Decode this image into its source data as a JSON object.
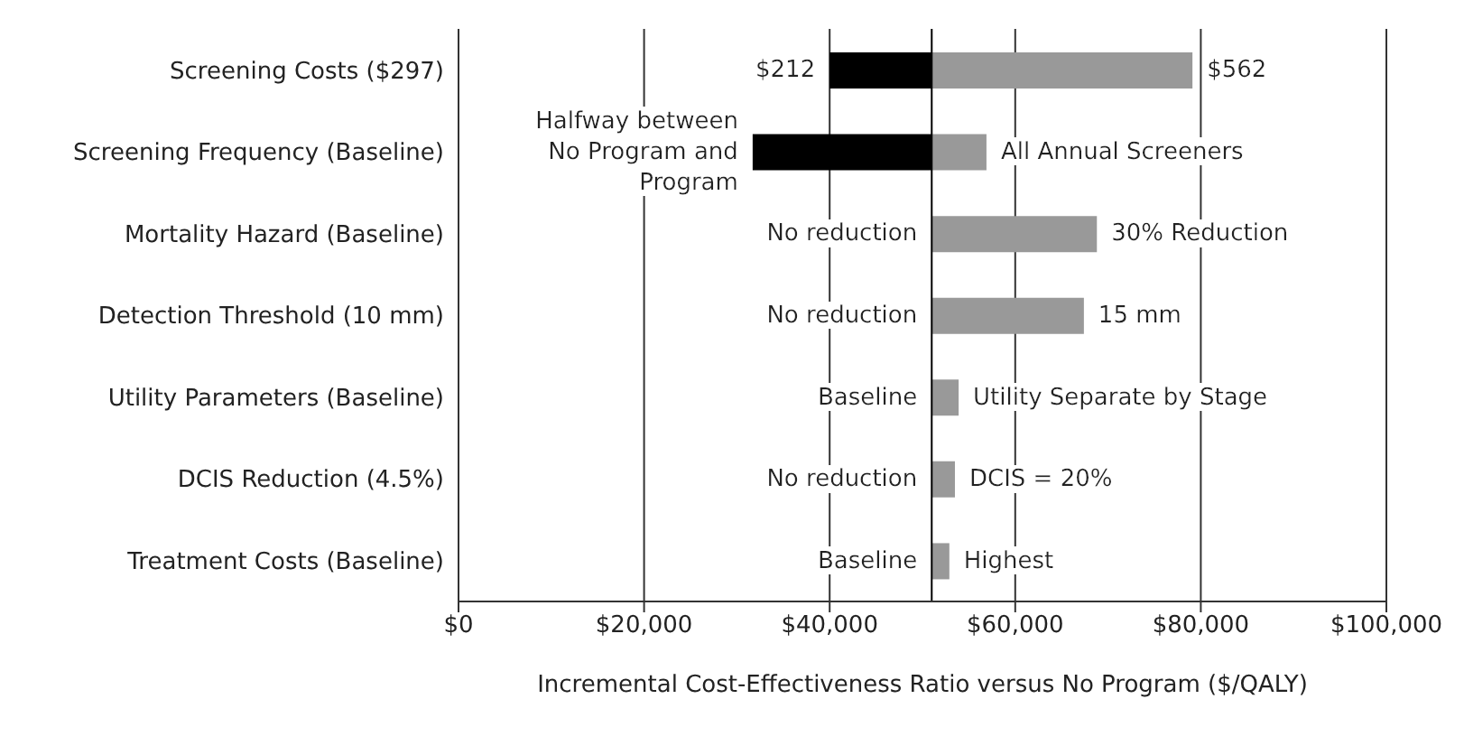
{
  "chart_data": {
    "type": "bar",
    "orientation": "horizontal",
    "xlabel": "Incremental Cost-Effectiveness Ratio versus No Program ($/QALY)",
    "categories": [
      "Screening Costs ($297)",
      "Screening Frequency (Baseline)",
      "Mortality Hazard (Baseline)",
      "Detection Threshold (10 mm)",
      "Utility Parameters (Baseline)",
      "DCIS Reduction (4.5%)",
      "Treatment Costs (Baseline)"
    ],
    "series": [
      {
        "color": "#000000",
        "base": [
          40000,
          31700,
          null,
          null,
          null,
          null,
          null
        ],
        "values": [
          11000,
          19300,
          null,
          null,
          null,
          null,
          null
        ]
      },
      {
        "color": "#999999",
        "base": [
          51000,
          51000,
          51000,
          51000,
          51000,
          51000,
          51000
        ],
        "values": [
          28100,
          5900,
          17800,
          16400,
          2900,
          2500,
          1900
        ]
      }
    ],
    "annotations": [
      {
        "text": "$212",
        "x": 40000,
        "y": "Screening Costs ($297)"
      },
      {
        "text": "Halfway between\nNo Program and\nProgram",
        "x": 31700,
        "y": "Screening Frequency (Baseline)"
      },
      {
        "text": "No reduction",
        "x": 51000,
        "y": "Mortality Hazard (Baseline)"
      },
      {
        "text": "No reduction",
        "x": 51000,
        "y": "Detection Threshold (10 mm)"
      },
      {
        "text": "Baseline",
        "x": 51000,
        "y": "Utility Parameters (Baseline)"
      },
      {
        "text": "No reduction",
        "x": 51000,
        "y": "DCIS Reduction (4.5%)"
      },
      {
        "text": "Baseline",
        "x": 51000,
        "y": "Treatment Costs (Baseline)"
      },
      {
        "text": "$562",
        "x": 79100,
        "y": "Screening Costs ($297)"
      },
      {
        "text": "All Annual Screeners",
        "x": 56900,
        "y": "Screening Frequency (Baseline)"
      },
      {
        "text": "30% Reduction",
        "x": 68800,
        "y": "Mortality Hazard (Baseline)"
      },
      {
        "text": "15 mm",
        "x": 67400,
        "y": "Detection Threshold (10 mm)"
      },
      {
        "text": "Utility Separate by Stage",
        "x": 53900,
        "y": "Utility Parameters (Baseline)"
      },
      {
        "text": "DCIS = 20%",
        "x": 53500,
        "y": "DCIS Reduction (4.5%)"
      },
      {
        "text": "Highest",
        "x": 52900,
        "y": "Treatment Costs (Baseline)"
      }
    ],
    "xlim": [
      0,
      100000
    ],
    "xticks": [
      {
        "value": 0,
        "label": "$0"
      },
      {
        "value": 20000,
        "label": "$20,000"
      },
      {
        "value": 40000,
        "label": "$40,000"
      },
      {
        "value": 60000,
        "label": "$60,000"
      },
      {
        "value": 80000,
        "label": "$80,000"
      },
      {
        "value": 100000,
        "label": "$100,000"
      }
    ],
    "ref_lines": [
      {
        "axis": "x",
        "value": 51000,
        "color": "#000000"
      }
    ],
    "grid": "x",
    "legend": false
  }
}
